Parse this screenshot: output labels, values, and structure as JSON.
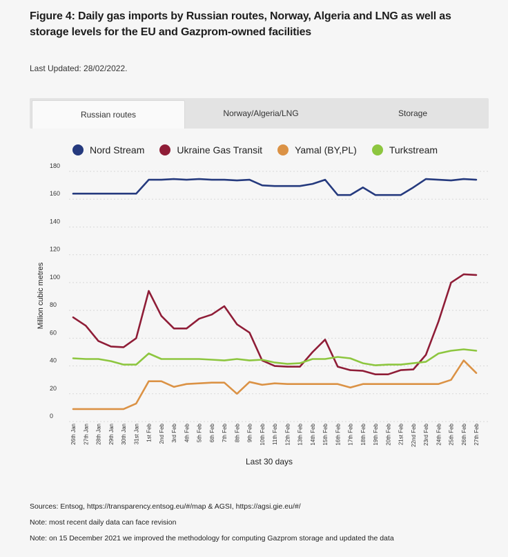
{
  "figure": {
    "title": "Figure 4: Daily gas imports by Russian routes, Norway, Algeria and LNG as well as storage levels for the EU and Gazprom-owned facilities",
    "updated": "Last Updated: 28/02/2022."
  },
  "tabs": [
    {
      "label": "Russian routes",
      "active": true
    },
    {
      "label": "Norway/Algeria/LNG",
      "active": false
    },
    {
      "label": "Storage",
      "active": false
    }
  ],
  "notes": {
    "sources": "Sources: Entsog,  https://transparency.entsog.eu/#/map  &  AGSI,  https://agsi.gie.eu/#/",
    "note1": "Note: most recent daily data can face revision",
    "note2": "Note: on 15 December 2021 we improved the methodology for computing Gazprom storage and updated the data"
  },
  "chart_data": {
    "type": "line",
    "xlabel": "Last 30 days",
    "ylabel": "Million cubic metres",
    "ylim": [
      0,
      180
    ],
    "yticks": [
      0,
      20,
      40,
      60,
      80,
      100,
      120,
      140,
      160,
      180
    ],
    "grid": true,
    "legend_position": "top",
    "categories": [
      "26th Jan",
      "27th Jan",
      "28th Jan",
      "29th Jan",
      "30th Jan",
      "31st Jan",
      "1st Feb",
      "2nd Feb",
      "3rd Feb",
      "4th Feb",
      "5th Feb",
      "6th Feb",
      "7th Feb",
      "8th Feb",
      "9th Feb",
      "10th Feb",
      "11th Feb",
      "12th Feb",
      "13th Feb",
      "14th Feb",
      "15th Feb",
      "16th Feb",
      "17th Feb",
      "18th Feb",
      "19th Feb",
      "20th Feb",
      "21st Feb",
      "22nd Feb",
      "23rd Feb",
      "24th Feb",
      "25th Feb",
      "26th Feb",
      "27th Feb"
    ],
    "series": [
      {
        "name": "Nord Stream",
        "color": "#253a7e",
        "values": [
          160,
          160,
          160,
          160,
          160,
          160,
          170,
          170,
          170.5,
          170,
          170.5,
          170,
          170,
          169.5,
          170,
          166,
          165.5,
          165.5,
          165.5,
          167,
          170,
          159,
          159,
          164.5,
          159,
          159,
          159,
          164.5,
          170.5,
          170,
          169.5,
          170.5,
          170
        ]
      },
      {
        "name": "Ukraine Gas Transit",
        "color": "#8f1d37",
        "values": [
          71,
          65,
          54,
          50,
          49.5,
          56,
          90,
          72,
          63,
          63,
          70,
          73,
          79,
          66,
          60,
          40,
          36,
          35.5,
          35.5,
          46,
          55,
          35.5,
          33,
          32.5,
          30,
          30,
          33,
          33.5,
          44,
          68,
          96,
          102,
          101.5
        ]
      },
      {
        "name": "Yamal (BY,PL)",
        "color": "#db9245",
        "values": [
          5,
          5,
          5,
          5,
          5,
          9,
          25,
          25,
          21,
          23,
          23.5,
          24,
          24,
          16,
          24.5,
          22.5,
          23.5,
          23,
          23,
          23,
          23,
          23,
          20.5,
          23,
          23,
          23,
          23,
          23,
          23,
          23,
          26,
          40,
          31
        ]
      },
      {
        "name": "Turkstream",
        "color": "#8dc63f",
        "values": [
          41.5,
          41,
          41,
          39.5,
          37,
          37,
          45,
          41,
          41,
          41,
          41,
          40.5,
          40,
          41,
          40,
          40.5,
          38.5,
          37.5,
          38,
          41,
          41,
          42.5,
          41.5,
          38,
          36.5,
          37,
          37,
          38,
          39,
          45,
          47,
          48,
          47
        ]
      }
    ]
  }
}
